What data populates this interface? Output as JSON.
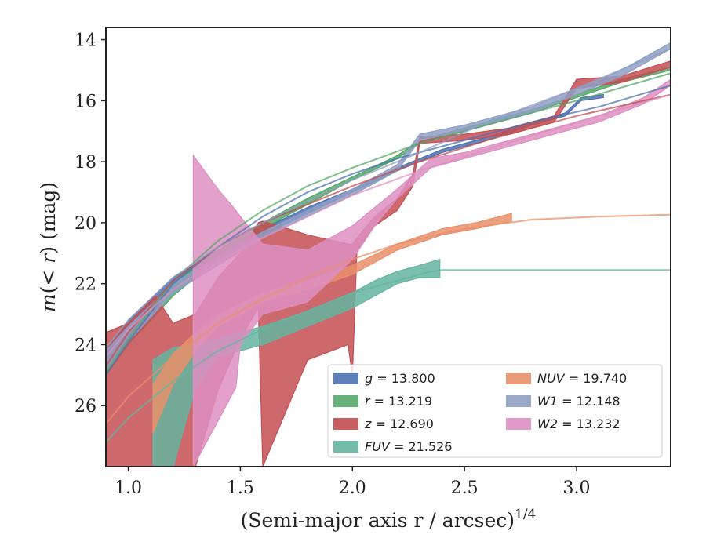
{
  "chart_data": {
    "type": "area",
    "xlabel": "(Semi-major axis r / arcsec)",
    "xlabel_exponent": "1/4",
    "ylabel": "m(< r) (mag)",
    "ylabel_parts": {
      "m": "m",
      "open": "(",
      "lt": "< ",
      "r": "r",
      "close": ")",
      "unit": " (mag)"
    },
    "xlim": [
      0.9,
      3.42
    ],
    "ylim": [
      28.0,
      13.6
    ],
    "y_inverted": true,
    "grid": false,
    "legend_position": "lower-right",
    "x_ticks": [
      1.0,
      1.5,
      2.0,
      2.5,
      3.0
    ],
    "x_tick_labels": [
      "1.0",
      "1.5",
      "2.0",
      "2.5",
      "3.0"
    ],
    "y_ticks": [
      14,
      16,
      18,
      20,
      22,
      24,
      26
    ],
    "y_tick_labels": [
      "14",
      "16",
      "18",
      "20",
      "22",
      "24",
      "26"
    ],
    "series": [
      {
        "name": "g = 13.800",
        "band": "g",
        "value": "13.800",
        "color": "#4c72b0",
        "data": [
          [
            0.9,
            24.2,
            24.8
          ],
          [
            1.0,
            23.2,
            23.8
          ],
          [
            1.2,
            21.8,
            22.2
          ],
          [
            1.4,
            20.9,
            21.2
          ],
          [
            1.6,
            20.2,
            20.4
          ],
          [
            1.8,
            19.5,
            19.7
          ],
          [
            2.0,
            18.9,
            19.0
          ],
          [
            2.2,
            18.2,
            18.3
          ],
          [
            2.4,
            17.6,
            17.7
          ],
          [
            2.6,
            17.2,
            17.3
          ],
          [
            2.8,
            16.7,
            16.8
          ],
          [
            2.95,
            16.4,
            16.5
          ],
          [
            3.02,
            15.9,
            16.0
          ],
          [
            3.12,
            15.8,
            15.9
          ]
        ],
        "model": [
          [
            0.9,
            25.0
          ],
          [
            1.0,
            23.9
          ],
          [
            1.2,
            22.0
          ],
          [
            1.4,
            20.8
          ],
          [
            1.6,
            19.8
          ],
          [
            1.8,
            19.0
          ],
          [
            2.0,
            18.4
          ],
          [
            2.2,
            17.9
          ],
          [
            2.5,
            17.3
          ],
          [
            2.8,
            16.7
          ],
          [
            3.1,
            16.2
          ],
          [
            3.42,
            15.5
          ]
        ]
      },
      {
        "name": "r = 13.219",
        "band": "r",
        "value": "13.219",
        "color": "#55a868",
        "data": [
          [
            0.9,
            24.6,
            25.0
          ],
          [
            1.0,
            23.6,
            24.0
          ],
          [
            1.2,
            22.0,
            22.4
          ],
          [
            1.4,
            20.9,
            21.2
          ],
          [
            1.6,
            20.0,
            20.2
          ],
          [
            1.8,
            19.2,
            19.4
          ],
          [
            2.0,
            18.5,
            18.6
          ],
          [
            2.2,
            17.8,
            17.9
          ],
          [
            2.3,
            17.3,
            17.4
          ],
          [
            2.5,
            16.9,
            17.0
          ],
          [
            2.8,
            16.3,
            16.4
          ],
          [
            3.0,
            15.8,
            15.9
          ],
          [
            3.2,
            15.3,
            15.4
          ],
          [
            3.42,
            14.9,
            15.0
          ]
        ],
        "model": [
          [
            0.9,
            24.9
          ],
          [
            1.0,
            23.8
          ],
          [
            1.2,
            21.9
          ],
          [
            1.4,
            20.6
          ],
          [
            1.6,
            19.6
          ],
          [
            1.8,
            18.8
          ],
          [
            2.0,
            18.2
          ],
          [
            2.3,
            17.4
          ],
          [
            2.6,
            16.8
          ],
          [
            3.0,
            16.0
          ],
          [
            3.42,
            15.1
          ]
        ]
      },
      {
        "name": "z = 12.690",
        "band": "z",
        "value": "12.690",
        "color": "#c44e52",
        "data": [
          [
            0.9,
            23.6,
            28.0
          ],
          [
            1.0,
            23.3,
            28.0
          ],
          [
            1.12,
            22.4,
            28.0
          ],
          [
            1.2,
            23.3,
            28.0
          ],
          [
            1.3,
            23.0,
            28.0
          ],
          [
            1.4,
            21.8,
            25.5
          ],
          [
            1.5,
            21.0,
            23.8
          ],
          [
            1.58,
            20.0,
            22.8
          ],
          [
            1.6,
            19.95,
            28.0
          ],
          [
            1.8,
            20.4,
            24.5
          ],
          [
            1.98,
            20.7,
            24.0
          ],
          [
            2.0,
            20.7,
            25.0
          ],
          [
            2.02,
            20.5,
            20.9
          ],
          [
            2.1,
            19.8,
            20.1
          ],
          [
            2.2,
            19.2,
            19.6
          ],
          [
            2.27,
            18.4,
            18.8
          ],
          [
            2.3,
            17.2,
            17.4
          ],
          [
            2.5,
            17.1,
            17.3
          ],
          [
            2.7,
            16.9,
            17.1
          ],
          [
            2.9,
            16.5,
            16.7
          ],
          [
            3.0,
            15.3,
            15.6
          ],
          [
            3.2,
            15.2,
            15.4
          ],
          [
            3.42,
            14.7,
            14.9
          ]
        ],
        "model": [
          [
            0.9,
            24.7
          ],
          [
            1.0,
            23.6
          ],
          [
            1.2,
            21.9
          ],
          [
            1.4,
            20.8
          ],
          [
            1.6,
            20.0
          ],
          [
            1.8,
            19.4
          ],
          [
            2.0,
            18.8
          ],
          [
            2.3,
            18.0
          ],
          [
            2.6,
            17.3
          ],
          [
            3.0,
            16.5
          ],
          [
            3.42,
            15.8
          ]
        ]
      },
      {
        "name": "FUV = 21.526",
        "band": "FUV",
        "value": "21.526",
        "color": "#64b5a0",
        "data": [
          [
            1.11,
            24.5,
            28.0
          ],
          [
            1.2,
            24.1,
            28.0
          ],
          [
            1.3,
            24.0,
            25.4
          ],
          [
            1.4,
            23.8,
            24.4
          ],
          [
            1.6,
            23.4,
            24.0
          ],
          [
            1.8,
            22.9,
            23.4
          ],
          [
            2.0,
            22.3,
            22.8
          ],
          [
            2.1,
            21.9,
            22.4
          ],
          [
            2.2,
            21.6,
            22.0
          ],
          [
            2.3,
            21.4,
            21.8
          ],
          [
            2.39,
            21.2,
            21.8
          ]
        ],
        "model": [
          [
            0.9,
            27.2
          ],
          [
            1.0,
            26.4
          ],
          [
            1.2,
            25.2
          ],
          [
            1.4,
            24.2
          ],
          [
            1.6,
            23.5
          ],
          [
            1.8,
            22.9
          ],
          [
            2.0,
            22.3
          ],
          [
            2.2,
            21.9
          ],
          [
            2.35,
            21.6
          ],
          [
            2.4,
            21.55
          ],
          [
            3.42,
            21.55
          ]
        ]
      },
      {
        "name": "NUV = 19.740",
        "band": "NUV",
        "value": "19.740",
        "color": "#e8906a",
        "data": [
          [
            1.11,
            25.3,
            26.9
          ],
          [
            1.2,
            24.3,
            25.3
          ],
          [
            1.3,
            23.6,
            24.2
          ],
          [
            1.4,
            23.0,
            23.4
          ],
          [
            1.6,
            22.3,
            22.6
          ],
          [
            1.8,
            21.9,
            22.2
          ],
          [
            2.0,
            21.4,
            21.7
          ],
          [
            2.2,
            20.7,
            20.9
          ],
          [
            2.4,
            20.2,
            20.4
          ],
          [
            2.55,
            20.0,
            20.2
          ],
          [
            2.71,
            19.7,
            19.95
          ]
        ],
        "model": [
          [
            0.9,
            26.6
          ],
          [
            1.0,
            25.7
          ],
          [
            1.2,
            24.4
          ],
          [
            1.4,
            23.3
          ],
          [
            1.6,
            22.5
          ],
          [
            1.8,
            21.8
          ],
          [
            2.0,
            21.2
          ],
          [
            2.2,
            20.7
          ],
          [
            2.5,
            20.2
          ],
          [
            2.8,
            19.9
          ],
          [
            3.1,
            19.8
          ],
          [
            3.42,
            19.74
          ]
        ]
      },
      {
        "name": "W1 = 12.148",
        "band": "W1",
        "value": "12.148",
        "color": "#8f9fc4",
        "data": [
          [
            0.9,
            24.2,
            24.9
          ],
          [
            1.0,
            23.4,
            23.9
          ],
          [
            1.2,
            22.0,
            22.3
          ],
          [
            1.4,
            21.1,
            21.4
          ],
          [
            1.6,
            20.3,
            20.5
          ],
          [
            1.8,
            19.6,
            19.8
          ],
          [
            2.0,
            18.9,
            19.1
          ],
          [
            2.2,
            18.1,
            18.3
          ],
          [
            2.3,
            17.1,
            17.3
          ],
          [
            2.5,
            16.8,
            17.0
          ],
          [
            2.8,
            16.2,
            16.4
          ],
          [
            3.0,
            15.6,
            15.8
          ],
          [
            3.2,
            15.0,
            15.2
          ],
          [
            3.42,
            14.1,
            14.3
          ]
        ],
        "model": [
          [
            0.9,
            24.1
          ],
          [
            1.0,
            23.2
          ],
          [
            1.2,
            21.8
          ],
          [
            1.4,
            20.8
          ],
          [
            1.6,
            20.0
          ],
          [
            1.8,
            19.3
          ],
          [
            2.0,
            18.6
          ],
          [
            2.3,
            17.7
          ],
          [
            2.6,
            16.7
          ],
          [
            3.0,
            15.6
          ],
          [
            3.42,
            14.3
          ]
        ]
      },
      {
        "name": "W2 = 13.232",
        "band": "W2",
        "value": "13.232",
        "color": "#dd8fc2",
        "data": [
          [
            1.29,
            17.8,
            28.0
          ],
          [
            1.4,
            18.9,
            26.5
          ],
          [
            1.48,
            19.6,
            25.4
          ],
          [
            1.5,
            19.8,
            24.0
          ],
          [
            1.6,
            20.7,
            23.0
          ],
          [
            1.8,
            20.9,
            22.6
          ],
          [
            2.0,
            20.1,
            21.2
          ],
          [
            2.1,
            19.5,
            20.1
          ],
          [
            2.2,
            18.9,
            19.2
          ],
          [
            2.35,
            17.9,
            18.2
          ],
          [
            2.5,
            17.7,
            17.9
          ],
          [
            2.7,
            17.3,
            17.5
          ],
          [
            2.9,
            16.9,
            17.1
          ],
          [
            3.1,
            16.5,
            16.7
          ],
          [
            3.3,
            15.9,
            16.1
          ],
          [
            3.42,
            15.3,
            15.5
          ]
        ],
        "model": [
          [
            0.9,
            24.4
          ],
          [
            1.0,
            23.5
          ],
          [
            1.2,
            22.2
          ],
          [
            1.4,
            21.2
          ],
          [
            1.6,
            20.5
          ],
          [
            1.8,
            19.8
          ],
          [
            2.0,
            19.1
          ],
          [
            2.3,
            18.3
          ],
          [
            2.6,
            17.6
          ],
          [
            3.0,
            16.7
          ],
          [
            3.42,
            15.8
          ]
        ]
      }
    ]
  }
}
